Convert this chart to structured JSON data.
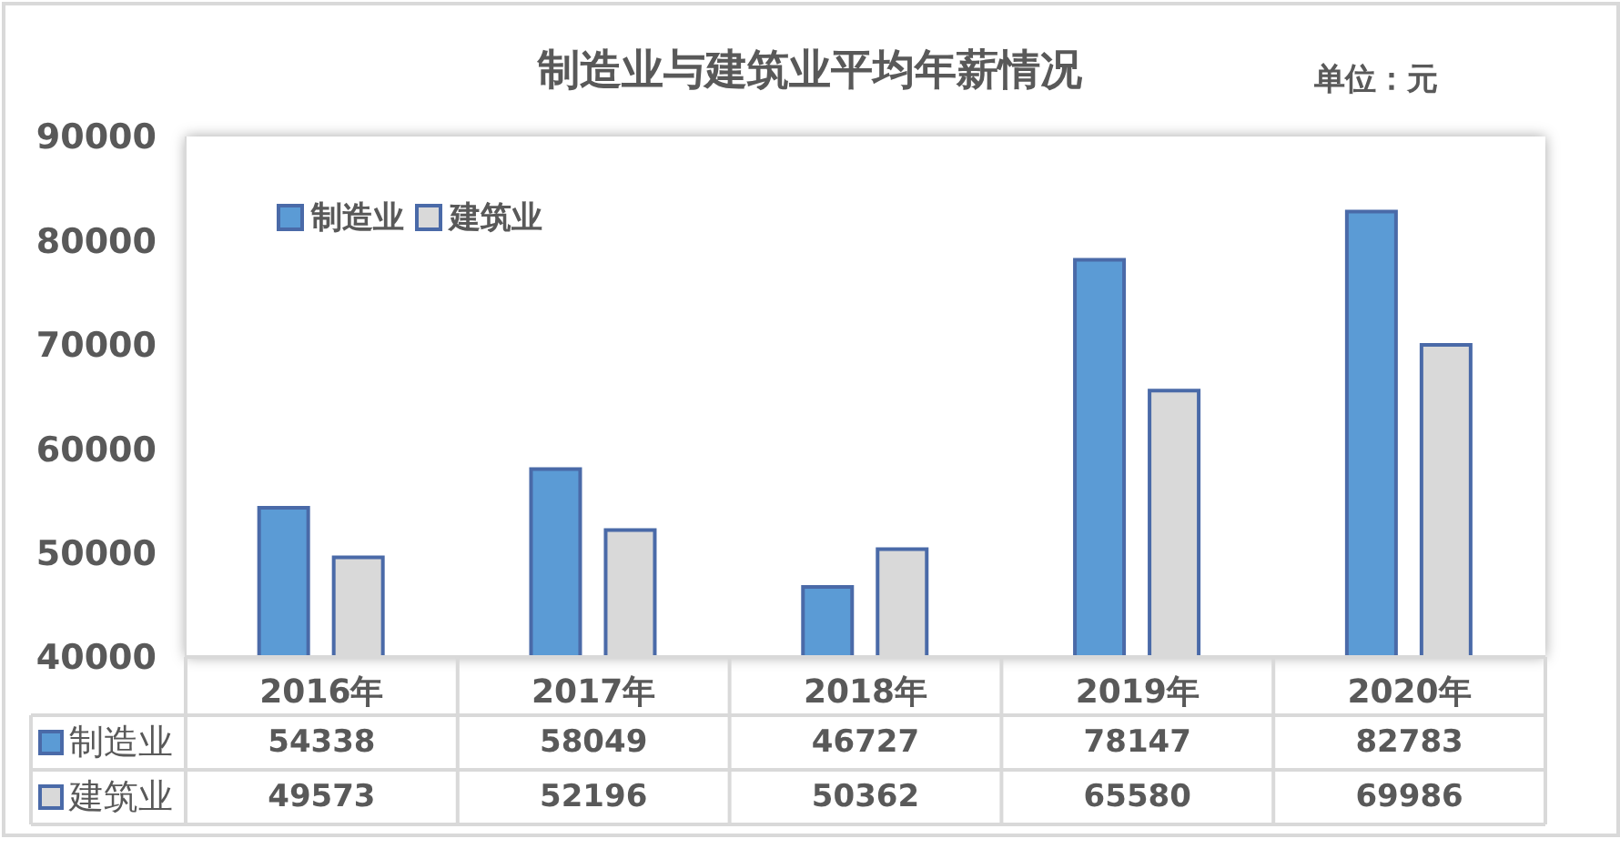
{
  "chart_data": {
    "type": "bar",
    "title": "制造业与建筑业平均年薪情况",
    "annotations": [
      "单位：元"
    ],
    "categories": [
      "2016年",
      "2017年",
      "2018年",
      "2019年",
      "2020年"
    ],
    "series": [
      {
        "name": "制造业",
        "color": "#5b9bd5",
        "values": [
          54338,
          58049,
          46727,
          78147,
          82783
        ]
      },
      {
        "name": "建筑业",
        "color": "#d9d9d9",
        "values": [
          49573,
          52196,
          50362,
          65580,
          69986
        ]
      }
    ],
    "ylim": [
      40000,
      90000
    ],
    "yticks": [
      40000,
      50000,
      60000,
      70000,
      80000,
      90000
    ],
    "legend": "top left",
    "data_labels": true
  }
}
